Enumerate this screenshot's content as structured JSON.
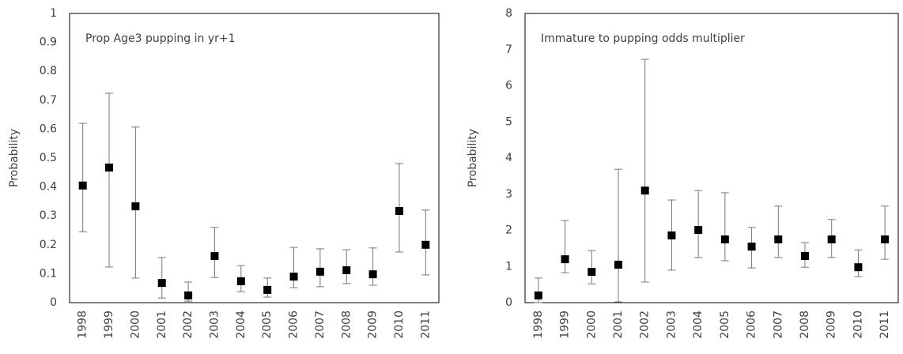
{
  "chart_data": [
    {
      "type": "errorbar",
      "title": "Prop Age3 pupping in yr+1",
      "y_label": "Probability",
      "color": "#000000",
      "categories": [
        "1998",
        "1999",
        "2000",
        "2001",
        "2002",
        "2003",
        "2004",
        "2005",
        "2006",
        "2007",
        "2008",
        "2009",
        "2010",
        "2011"
      ],
      "values": [
        0.405,
        0.467,
        0.333,
        0.068,
        0.025,
        0.161,
        0.074,
        0.044,
        0.09,
        0.107,
        0.112,
        0.098,
        0.317,
        0.2
      ],
      "lower": [
        0.245,
        0.123,
        0.085,
        0.016,
        0.005,
        0.087,
        0.038,
        0.019,
        0.052,
        0.055,
        0.066,
        0.06,
        0.175,
        0.096
      ],
      "upper": [
        0.62,
        0.724,
        0.607,
        0.156,
        0.071,
        0.26,
        0.128,
        0.085,
        0.191,
        0.186,
        0.183,
        0.189,
        0.481,
        0.32
      ],
      "ylim": [
        0,
        1
      ],
      "yticks": [
        0,
        0.1,
        0.2,
        0.3,
        0.4,
        0.5,
        0.6,
        0.7,
        0.8,
        0.9,
        1
      ]
    },
    {
      "type": "errorbar",
      "title": "Immature to pupping odds multiplier",
      "y_label": "Probability",
      "color": "#000000",
      "categories": [
        "1998",
        "1999",
        "2000",
        "2001",
        "2002",
        "2003",
        "2004",
        "2005",
        "2006",
        "2007",
        "2008",
        "2009",
        "2010",
        "2011"
      ],
      "values": [
        0.2,
        1.2,
        0.85,
        1.05,
        3.1,
        1.86,
        2.01,
        1.75,
        1.55,
        1.75,
        1.29,
        1.75,
        0.98,
        1.75
      ],
      "lower": [
        0.0,
        0.83,
        0.52,
        0.02,
        0.57,
        0.9,
        1.25,
        1.16,
        0.96,
        1.25,
        0.98,
        1.25,
        0.72,
        1.2
      ],
      "upper": [
        0.68,
        2.27,
        1.44,
        3.69,
        6.73,
        2.84,
        3.1,
        3.04,
        2.08,
        2.67,
        1.66,
        2.3,
        1.46,
        2.67
      ],
      "ylim": [
        0,
        8
      ],
      "yticks": [
        0,
        1,
        2,
        3,
        4,
        5,
        6,
        7,
        8
      ]
    }
  ]
}
